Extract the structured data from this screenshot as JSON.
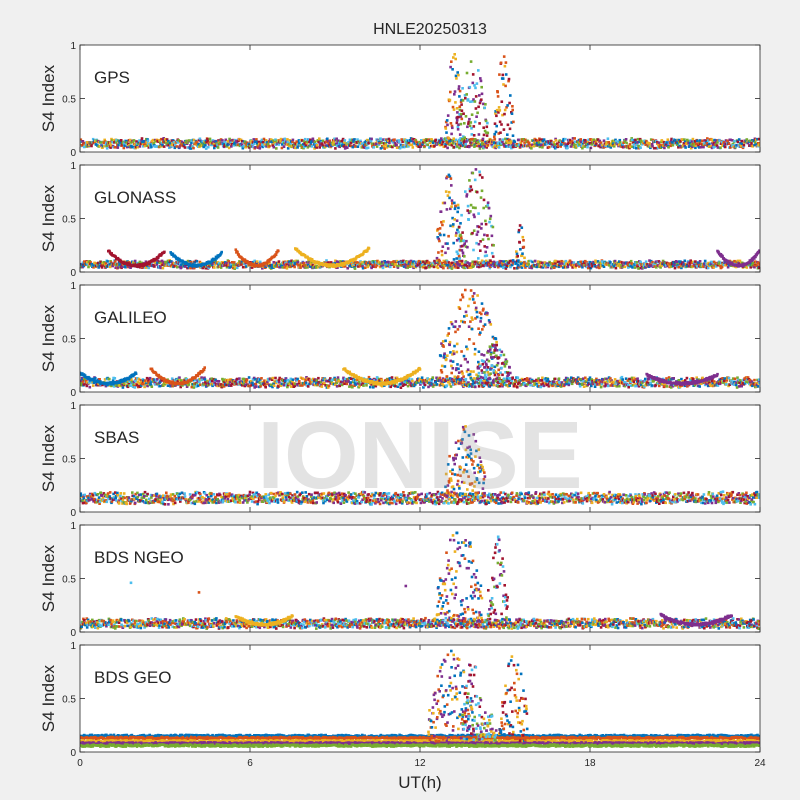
{
  "figure": {
    "title": "HNLE20250313",
    "xlabel": "UT(h)",
    "watermark": "IONISE",
    "background": "#f0f0f0",
    "axes_background": "#ffffff"
  },
  "chart_data": {
    "type": "scatter",
    "title": "HNLE20250313",
    "xlabel": "UT(h)",
    "ylabel": "S4 Index",
    "xlim": [
      0,
      24
    ],
    "ylim": [
      0,
      1
    ],
    "xticks": [
      0,
      6,
      12,
      18,
      24
    ],
    "yticks": [
      0,
      0.5,
      1
    ],
    "grid": false,
    "colors": [
      "#0072BD",
      "#D95319",
      "#EDB120",
      "#7E2F8E",
      "#77AC30",
      "#4DBEEE",
      "#A2142F"
    ],
    "panels": [
      {
        "label": "GPS",
        "base": 0.07,
        "spread": 0.04,
        "bursts": [
          {
            "t0": 12.9,
            "t1": 13.5,
            "ymax": 0.95
          },
          {
            "t0": 13.3,
            "t1": 14.4,
            "ymax": 0.85
          },
          {
            "t0": 14.6,
            "t1": 15.3,
            "ymax": 0.9
          }
        ],
        "arcs": []
      },
      {
        "label": "GLONASS",
        "base": 0.06,
        "spread": 0.03,
        "bursts": [
          {
            "t0": 12.6,
            "t1": 13.5,
            "ymax": 0.95
          },
          {
            "t0": 13.3,
            "t1": 14.6,
            "ymax": 1.0
          },
          {
            "t0": 15.4,
            "t1": 15.7,
            "ymax": 0.45
          }
        ],
        "arcs": [
          {
            "t0": 1.0,
            "t1": 3.0,
            "ymax": 0.2
          },
          {
            "t0": 3.2,
            "t1": 5.0,
            "ymax": 0.18
          },
          {
            "t0": 5.5,
            "t1": 7.0,
            "ymax": 0.2
          },
          {
            "t0": 7.6,
            "t1": 10.2,
            "ymax": 0.22
          },
          {
            "t0": 22.5,
            "t1": 24.0,
            "ymax": 0.2
          }
        ]
      },
      {
        "label": "GALILEO",
        "base": 0.08,
        "spread": 0.04,
        "bursts": [
          {
            "t0": 12.7,
            "t1": 14.8,
            "ymax": 1.0
          },
          {
            "t0": 14.0,
            "t1": 15.2,
            "ymax": 0.45
          }
        ],
        "arcs": [
          {
            "t0": 0.0,
            "t1": 2.0,
            "ymax": 0.18
          },
          {
            "t0": 2.5,
            "t1": 4.4,
            "ymax": 0.22
          },
          {
            "t0": 9.3,
            "t1": 12.0,
            "ymax": 0.22
          },
          {
            "t0": 20.0,
            "t1": 22.5,
            "ymax": 0.16
          }
        ]
      },
      {
        "label": "SBAS",
        "base": 0.12,
        "spread": 0.05,
        "bursts": [
          {
            "t0": 12.9,
            "t1": 14.3,
            "ymax": 0.85
          }
        ],
        "arcs": []
      },
      {
        "label": "BDS NGEO",
        "base": 0.07,
        "spread": 0.04,
        "bursts": [
          {
            "t0": 12.6,
            "t1": 14.2,
            "ymax": 1.0
          },
          {
            "t0": 14.4,
            "t1": 15.1,
            "ymax": 0.95
          }
        ],
        "arcs": [
          {
            "t0": 5.5,
            "t1": 7.5,
            "ymax": 0.15
          },
          {
            "t0": 20.5,
            "t1": 23.0,
            "ymax": 0.16
          }
        ],
        "outliers": [
          [
            1.8,
            0.46
          ],
          [
            4.2,
            0.37
          ],
          [
            11.5,
            0.43
          ]
        ]
      },
      {
        "label": "BDS GEO",
        "base": 0.1,
        "spread": 0.02,
        "levels": [
          0.15,
          0.13,
          0.1,
          0.08,
          0.06
        ],
        "bursts": [
          {
            "t0": 12.3,
            "t1": 13.9,
            "ymax": 0.95
          },
          {
            "t0": 13.5,
            "t1": 14.2,
            "ymax": 0.92
          },
          {
            "t0": 14.8,
            "t1": 15.8,
            "ymax": 0.92
          },
          {
            "t0": 14.1,
            "t1": 14.7,
            "ymax": 0.4
          }
        ],
        "arcs": []
      }
    ]
  }
}
